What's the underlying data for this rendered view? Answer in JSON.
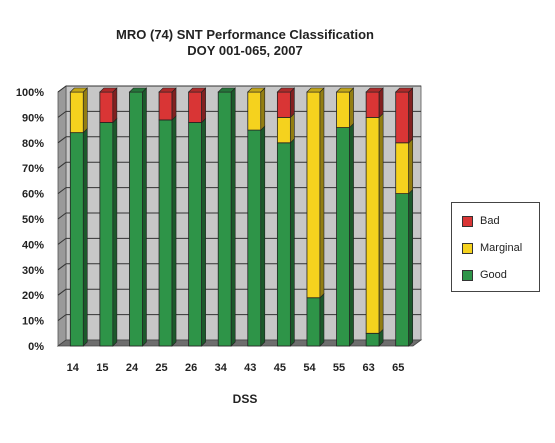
{
  "chart_data": {
    "type": "bar",
    "stacked": true,
    "three_d": true,
    "title": "MRO (74) SNT Performance Classification",
    "subtitle": "DOY 001-065, 2007",
    "xlabel": "DSS",
    "ylabel": "",
    "ylim": [
      0,
      100
    ],
    "y_ticks": [
      "0%",
      "10%",
      "20%",
      "30%",
      "40%",
      "50%",
      "60%",
      "70%",
      "80%",
      "90%",
      "100%"
    ],
    "grid": true,
    "legend_position": "right",
    "categories": [
      "14",
      "15",
      "24",
      "25",
      "26",
      "34",
      "43",
      "45",
      "54",
      "55",
      "63",
      "65"
    ],
    "series": [
      {
        "name": "Good",
        "color": "#2e9448",
        "values": [
          84,
          88,
          100,
          89,
          88,
          100,
          85,
          80,
          19,
          86,
          5,
          60
        ]
      },
      {
        "name": "Marginal",
        "color": "#f5d21e",
        "values": [
          16,
          0,
          0,
          0,
          0,
          0,
          15,
          10,
          81,
          14,
          85,
          20
        ]
      },
      {
        "name": "Bad",
        "color": "#d93535",
        "values": [
          0,
          12,
          0,
          11,
          12,
          0,
          0,
          10,
          0,
          0,
          10,
          20
        ]
      }
    ]
  },
  "legend": {
    "items": [
      {
        "label": "Bad",
        "color": "#d93535"
      },
      {
        "label": "Marginal",
        "color": "#f5d21e"
      },
      {
        "label": "Good",
        "color": "#2e9448"
      }
    ]
  }
}
